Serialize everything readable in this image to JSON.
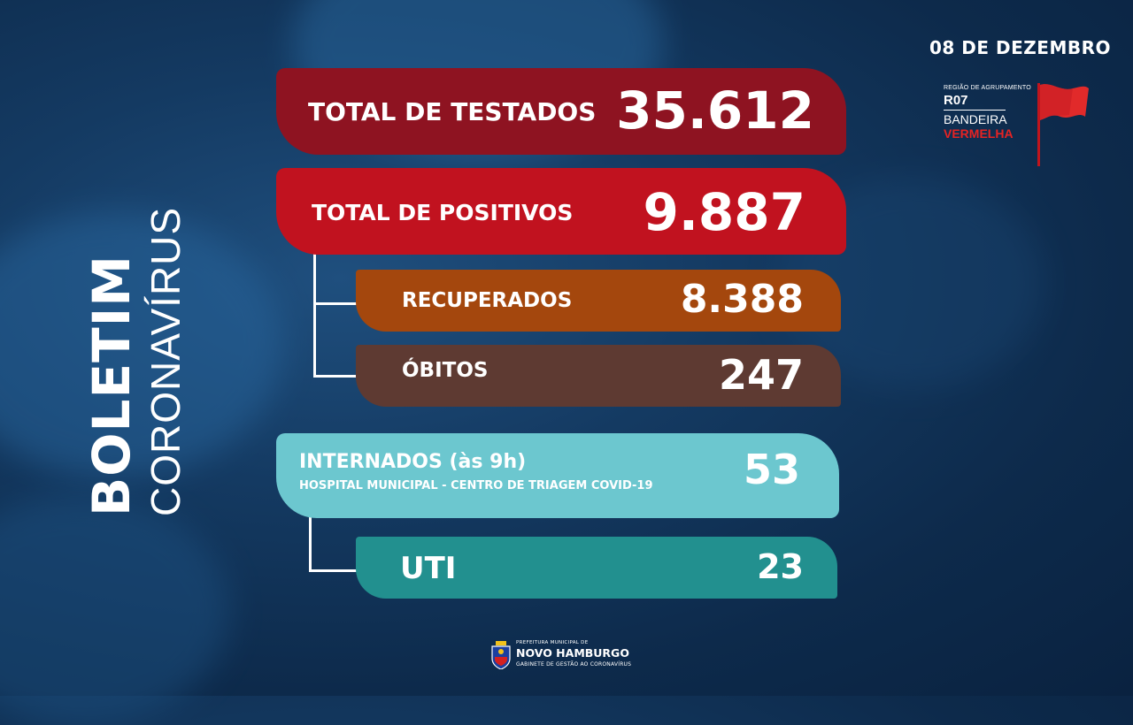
{
  "header": {
    "date": "08 DE DEZEMBRO",
    "region": {
      "small_label": "REGIÃO DE AGRUPAMENTO",
      "code": "R07",
      "line1": "BANDEIRA",
      "line2": "VERMELHA",
      "flag_color": "#e12a2a"
    }
  },
  "side_title": {
    "bold": "BOLETIM",
    "thin": "CORONAVÍRUS"
  },
  "stats": {
    "testados": {
      "label": "TOTAL DE TESTADOS",
      "value": "35.612",
      "color": "#8e1321"
    },
    "positivos": {
      "label": "TOTAL DE POSITIVOS",
      "value": "9.887",
      "color": "#c1121f"
    },
    "recuperados": {
      "label": "RECUPERADOS",
      "value": "8.388",
      "color": "#a4470d"
    },
    "obitos": {
      "label": "ÓBITOS",
      "value": "247",
      "color": "#5e3a32"
    },
    "internados": {
      "label": "INTERNADOS (às 9h)",
      "sublabel": "HOSPITAL MUNICIPAL - CENTRO DE TRIAGEM COVID-19",
      "value": "53",
      "color": "#6cc7cf"
    },
    "uti": {
      "label": "UTI",
      "value": "23",
      "color": "#22908f"
    }
  },
  "footer": {
    "line1": "PREFEITURA MUNICIPAL DE",
    "line2": "NOVO HAMBURGO",
    "line3": "GABINETE DE GESTÃO AO CORONAVÍRUS",
    "logo_icon": "city-crest-icon"
  }
}
